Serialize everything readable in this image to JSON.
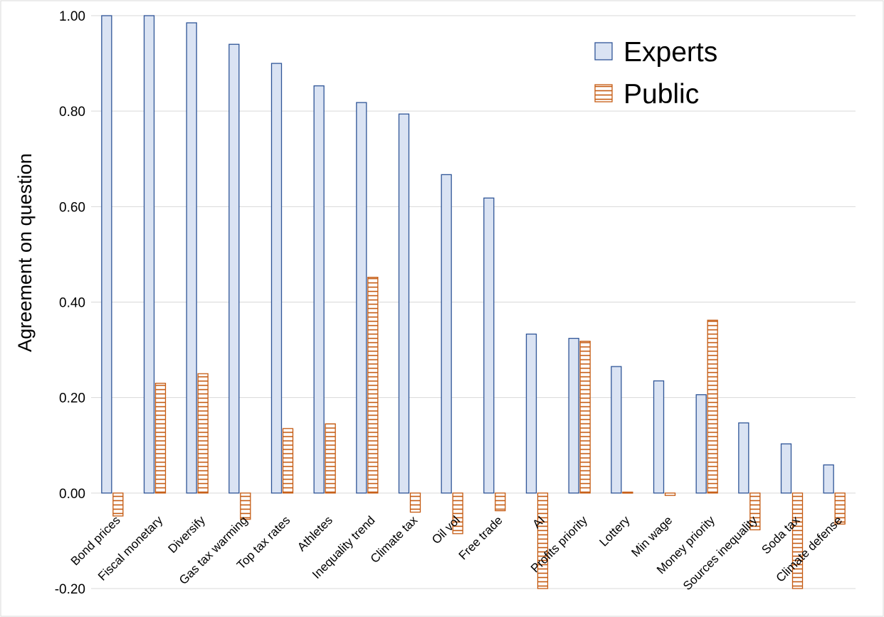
{
  "chart_data": {
    "type": "bar",
    "ylabel": "Agreement on question",
    "ylim": [
      -0.2,
      1.0
    ],
    "yticks": [
      -0.2,
      0.0,
      0.2,
      0.4,
      0.6,
      0.8,
      1.0
    ],
    "ytick_labels": [
      "-0.20",
      "0.00",
      "0.20",
      "0.40",
      "0.60",
      "0.80",
      "1.00"
    ],
    "legend_position": "top-right",
    "grid": true,
    "categories": [
      "Bond prices",
      "Fiscal monetary",
      "Diversify",
      "Gas tax warming",
      "Top tax rates",
      "Athletes",
      "Inequality trend",
      "Climate tax",
      "Oil vol",
      "Free trade",
      "AI",
      "Profits priority",
      "Lottery",
      "Min wage",
      "Money priority",
      "Sources inequality",
      "Soda tax",
      "Climate defense"
    ],
    "series": [
      {
        "name": "Experts",
        "color": "#dae3f3",
        "edge": "#2f5597",
        "values": [
          1.0,
          1.0,
          0.985,
          0.94,
          0.9,
          0.853,
          0.818,
          0.794,
          0.667,
          0.618,
          0.333,
          0.324,
          0.265,
          0.235,
          0.206,
          0.147,
          0.103,
          0.059
        ]
      },
      {
        "name": "Public",
        "color": "#ffffff",
        "edge": "#c55a11",
        "values": [
          -0.048,
          0.23,
          0.25,
          -0.055,
          0.135,
          0.145,
          0.452,
          -0.04,
          -0.085,
          -0.037,
          -0.2,
          0.318,
          0.002,
          -0.005,
          0.362,
          -0.077,
          -0.2,
          -0.065
        ]
      }
    ]
  }
}
